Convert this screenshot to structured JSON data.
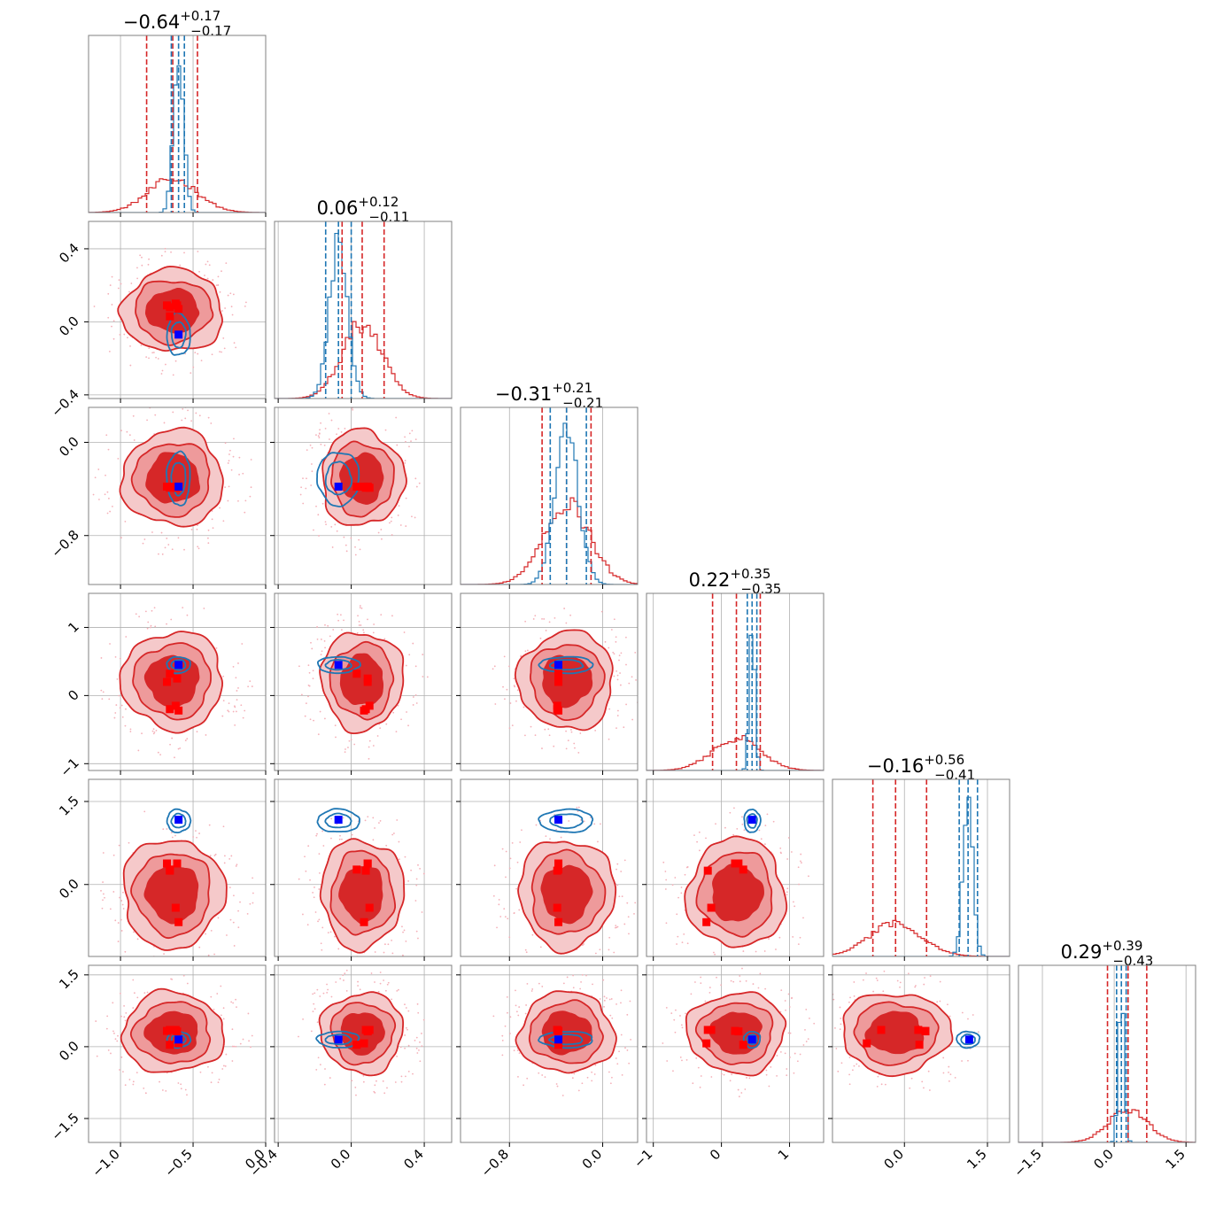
{
  "chart_data": {
    "type": "corner",
    "parameters": [
      {
        "title": "−0.64",
        "sup": "+0.17",
        "sub": "−0.17",
        "range": [
          -1.22,
          0.0
        ],
        "ticks": [
          -1.0,
          -0.5,
          0.0
        ],
        "tick_labels": [
          "−1.0",
          "−0.5",
          "0.0"
        ],
        "red": {
          "median": -0.64,
          "lo": -0.82,
          "hi": -0.47,
          "sigma": 0.17
        },
        "blue": {
          "median": -0.6,
          "lo": -0.65,
          "hi": -0.56,
          "sigma": 0.035
        },
        "hist_max": 0.25
      },
      {
        "title": "0.06",
        "sup": "+0.12",
        "sub": "−0.11",
        "range": [
          -0.42,
          0.55
        ],
        "ticks": [
          -0.4,
          0.0,
          0.4
        ],
        "tick_labels": [
          "−0.4",
          "0.0",
          "0.4"
        ],
        "red": {
          "median": 0.06,
          "lo": -0.05,
          "hi": 0.18,
          "sigma": 0.11
        },
        "blue": {
          "median": -0.07,
          "lo": -0.14,
          "hi": 0.0,
          "sigma": 0.05
        },
        "hist_max": 0.5
      },
      {
        "title": "−0.31",
        "sup": "+0.21",
        "sub": "−0.21",
        "range": [
          -1.22,
          0.3
        ],
        "ticks": [
          -0.8,
          0.0
        ],
        "tick_labels": [
          "−0.8",
          "0.0"
        ],
        "red": {
          "median": -0.31,
          "lo": -0.52,
          "hi": -0.1,
          "sigma": 0.2
        },
        "blue": {
          "median": -0.31,
          "lo": -0.45,
          "hi": -0.14,
          "sigma": 0.1
        },
        "hist_max": 0.58
      },
      {
        "title": "0.22",
        "sup": "+0.35",
        "sub": "−0.35",
        "range": [
          -1.1,
          1.5
        ],
        "ticks": [
          -1,
          0,
          1
        ],
        "tick_labels": [
          "−1",
          "0",
          "1"
        ],
        "red": {
          "median": 0.22,
          "lo": -0.13,
          "hi": 0.57,
          "sigma": 0.35
        },
        "blue": {
          "median": 0.45,
          "lo": 0.38,
          "hi": 0.52,
          "sigma": 0.04
        },
        "hist_max": 0.2
      },
      {
        "title": "−0.16",
        "sup": "+0.56",
        "sub": "−0.41",
        "range": [
          -1.3,
          1.9
        ],
        "ticks": [
          0.0,
          1.5
        ],
        "tick_labels": [
          "0.0",
          "1.5"
        ],
        "red": {
          "median": -0.16,
          "lo": -0.57,
          "hi": 0.4,
          "sigma": 0.48
        },
        "blue": {
          "median": 1.15,
          "lo": 0.99,
          "hi": 1.32,
          "sigma": 0.09
        },
        "hist_max": 0.45
      },
      {
        "title": "0.29",
        "sup": "+0.39",
        "sub": "−0.43",
        "range": [
          -2.0,
          1.7
        ],
        "ticks": [
          -1.5,
          0.0,
          1.5
        ],
        "tick_labels": [
          "−1.5",
          "0.0",
          "1.5"
        ],
        "red": {
          "median": 0.29,
          "lo": -0.14,
          "hi": 0.68,
          "sigma": 0.41
        },
        "blue": {
          "median": 0.15,
          "lo": 0.05,
          "hi": 0.25,
          "sigma": 0.06
        },
        "hist_max": 0.18
      }
    ],
    "red_markers": [
      [
        -0.68,
        0.09,
        -0.38,
        0.2,
        0.38,
        0.33
      ],
      [
        -0.61,
        0.09,
        -0.38,
        0.25,
        0.38,
        0.32
      ],
      [
        -0.66,
        0.03,
        -0.38,
        0.32,
        0.27,
        0.04
      ],
      [
        -0.62,
        0.1,
        -0.39,
        -0.15,
        -0.42,
        0.35
      ],
      [
        -0.66,
        0.08,
        -0.39,
        -0.2,
        0.25,
        0.35
      ],
      [
        -0.6,
        0.07,
        -0.38,
        -0.22,
        -0.68,
        0.07
      ]
    ],
    "blue_marker": [
      -0.6,
      -0.07,
      -0.38,
      0.45,
      1.17,
      0.15
    ],
    "colors": {
      "red": "#d62728",
      "red_mid": "#ee9a9b",
      "blue": "#1f77b4",
      "grid": "#b0b0b0",
      "marker_blue": "#0000ff",
      "marker_red": "#ff0000"
    },
    "grid": true
  }
}
